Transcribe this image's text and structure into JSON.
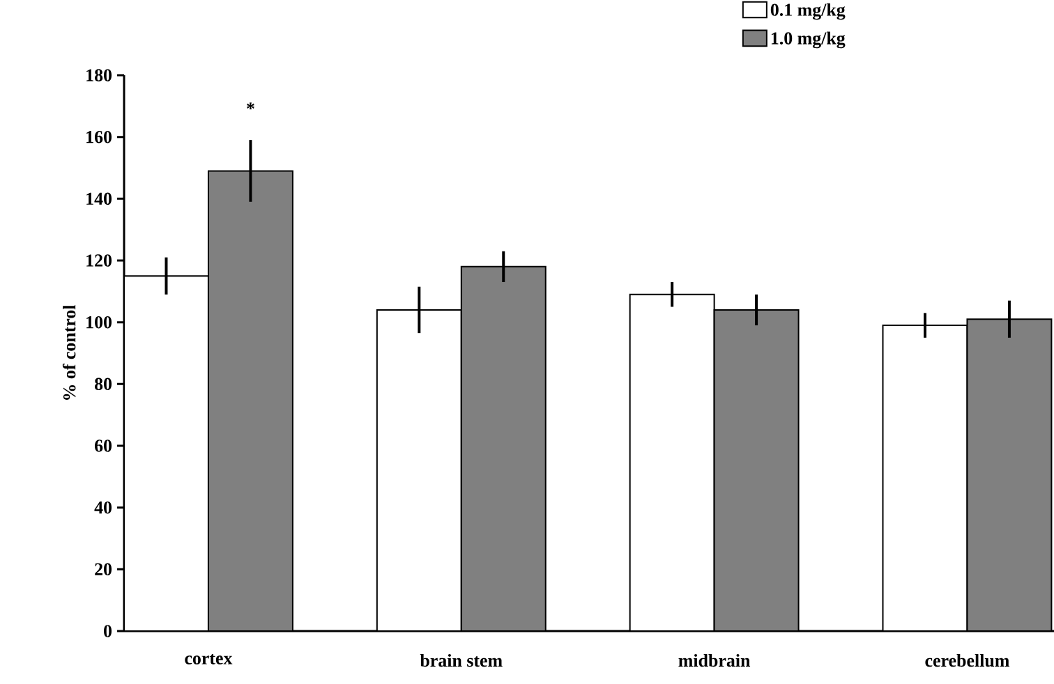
{
  "chart_data": {
    "type": "bar",
    "ylabel": "% of control",
    "categories": [
      "cortex",
      "brain stem",
      "midbrain",
      "cerebellum"
    ],
    "series": [
      {
        "name": "0.1 mg/kg",
        "color": "#ffffff",
        "values": [
          115,
          104,
          109,
          99
        ],
        "errors": [
          6,
          7.5,
          4,
          4
        ]
      },
      {
        "name": "1.0 mg/kg",
        "color": "#808080",
        "values": [
          149,
          118,
          104,
          101
        ],
        "errors": [
          10,
          5,
          5,
          6
        ]
      }
    ],
    "ylim": [
      0,
      180
    ],
    "yticks": [
      0,
      20,
      40,
      60,
      80,
      100,
      120,
      140,
      160,
      180
    ],
    "annotations": [
      "*"
    ],
    "legend": "top right",
    "grid": false
  }
}
